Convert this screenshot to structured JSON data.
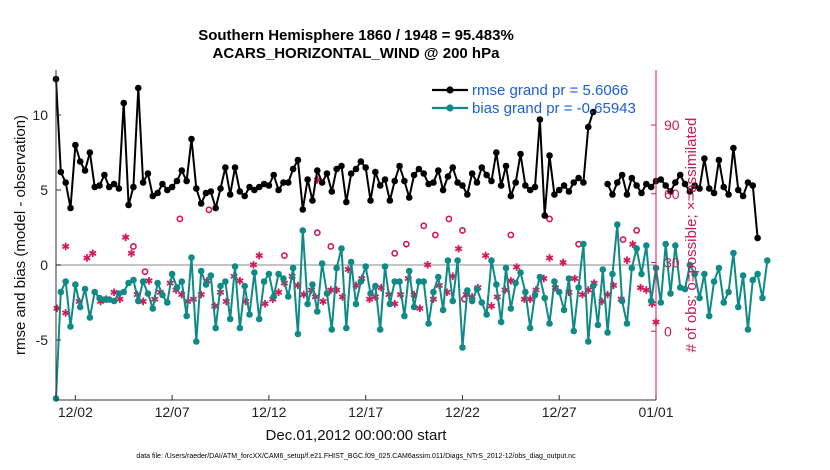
{
  "chart_data": {
    "type": "line",
    "title": "Southern Hemisphere 1860 / 1948 = 95.483%",
    "subtitle": "ACARS_HORIZONTAL_WIND @ 200 hPa",
    "xlabel": "Dec.01,2012 00:00:00 start",
    "ylabel": "rmse and bias (model - observation)",
    "ylabel_right": "# of obs: o=possible; ×=assimilated",
    "footnote": "data file: /Users/raeder/DAI/ATM_forcXX/CAM6_setup/f.e21.FHIST_BGC.f09_025.CAM6assim.011/Diags_NTrS_2012-12/obs_diag_output.nc",
    "x_range": [
      0,
      31
    ],
    "ylim": [
      -9,
      13
    ],
    "ylim_right": [
      -30,
      114
    ],
    "x_ticks": [
      1,
      6,
      11,
      16,
      21,
      26,
      31
    ],
    "x_tick_labels": [
      "12/02",
      "12/07",
      "12/12",
      "12/17",
      "12/22",
      "12/27",
      "01/01"
    ],
    "y_ticks": [
      -5,
      0,
      5,
      10
    ],
    "y_tick_labels": [
      "-5",
      "0",
      "5",
      "10"
    ],
    "y_ticks_right": [
      0,
      30,
      60,
      90
    ],
    "y_tick_labels_right": [
      "0",
      "30",
      "60",
      "90"
    ],
    "legend": [
      "rmse grand pr = 5.6066",
      "bias grand pr = -0.65943"
    ],
    "legend_position": "top-right",
    "colors": {
      "rmse": "#000000",
      "bias": "#0f8a86",
      "obs": "#d4195a",
      "zero_line": "#b0b0b0"
    },
    "series": [
      {
        "name": "rmse",
        "x_start": 0.0,
        "x_step": 0.25,
        "values": [
          12.4,
          6.2,
          5.5,
          3.8,
          8.0,
          6.9,
          6.3,
          7.5,
          5.2,
          5.3,
          6.0,
          5.2,
          5.4,
          5.1,
          10.8,
          4.0,
          5.2,
          11.8,
          5.5,
          6.1,
          4.6,
          4.8,
          5.4,
          5.0,
          5.2,
          5.6,
          6.3,
          5.6,
          8.4,
          5.1,
          4.1,
          4.8,
          4.9,
          3.8,
          5.1,
          6.5,
          4.7,
          6.5,
          4.9,
          4.6,
          5.2,
          5.0,
          5.2,
          5.4,
          5.3,
          6.0,
          5.0,
          5.5,
          5.5,
          6.4,
          7.0,
          3.7,
          5.7,
          4.3,
          6.3,
          5.5,
          6.1,
          4.9,
          6.4,
          6.6,
          4.2,
          6.1,
          6.4,
          6.9,
          6.5,
          4.3,
          6.2,
          5.3,
          5.7,
          4.3,
          5.6,
          6.6,
          5.6,
          4.5,
          6.0,
          6.4,
          6.1,
          5.4,
          5.5,
          6.3,
          5.0,
          5.9,
          6.5,
          5.5,
          5.3,
          4.7,
          6.1,
          5.5,
          6.5,
          6.0,
          5.6,
          7.5,
          5.3,
          6.6,
          4.6,
          5.5,
          7.4,
          5.3,
          5.0,
          5.2,
          9.7,
          3.3,
          7.3,
          4.7,
          5.0,
          5.3,
          4.9,
          5.5,
          5.8,
          5.5,
          9.2,
          10.2,
          null,
          null,
          5.4,
          4.7,
          5.5,
          6.0,
          4.7,
          5.8,
          5.3,
          4.8,
          5.4,
          5.2,
          5.6,
          5.7,
          5.3,
          4.9,
          5.5,
          6.0,
          5.4,
          4.9,
          5.3,
          5.1,
          7.1,
          5.1,
          4.8,
          7.0,
          5.2,
          4.7,
          7.8,
          5.0,
          4.6,
          5.5,
          5.3,
          1.8
        ],
        "line_breaks": [
          [
            0,
            15.3
          ],
          [
            15.3,
            27.9
          ],
          [
            27.9,
            31
          ]
        ]
      },
      {
        "name": "bias",
        "x_start": 0.0,
        "x_step": 0.25,
        "values": [
          -8.9,
          -1.8,
          -1.1,
          -4.1,
          -1.3,
          -2.8,
          -1.6,
          -3.5,
          -1.8,
          -2.2,
          -2.3,
          -2.3,
          -2.4,
          -1.9,
          -1.8,
          -1.2,
          -1.0,
          -2.4,
          -1.1,
          -1.9,
          -2.9,
          -1.2,
          -2.0,
          -2.5,
          -0.6,
          -1.5,
          -1.1,
          -3.4,
          0.5,
          -5.1,
          -0.4,
          -1.3,
          -0.7,
          -4.2,
          -1.4,
          -1.1,
          -3.6,
          -0.1,
          -4.2,
          -1.4,
          -3.3,
          -0.5,
          -3.6,
          -1.1,
          -0.6,
          -2.1,
          -0.6,
          -0.9,
          -2.1,
          -0.2,
          -4.6,
          2.3,
          -2.6,
          -1.3,
          -3.1,
          0.1,
          -1.9,
          -4.3,
          -0.2,
          1.1,
          -4.2,
          0.2,
          -2.6,
          -1.1,
          -0.1,
          -1.9,
          -1.4,
          -4.3,
          -0.1,
          -2.6,
          -1.1,
          -1.1,
          -3.4,
          -0.4,
          -2.8,
          -1.1,
          -1.1,
          -3.9,
          -1.8,
          -0.8,
          -3.0,
          0.3,
          -2.4,
          0.3,
          -5.5,
          -1.7,
          -2.4,
          -1.6,
          -2.5,
          -3.3,
          0.3,
          -1.3,
          -3.8,
          -0.2,
          -2.9,
          -1.2,
          -0.5,
          -1.8,
          -4.2,
          -2.0,
          -0.8,
          -2.2,
          -3.9,
          -1.1,
          -1.8,
          -3.0,
          -0.9,
          -4.4,
          -1.5,
          1.4,
          -5.1,
          -1.4,
          -4.0,
          -0.3,
          -4.5,
          -0.6,
          2.7,
          -2.4,
          -3.9,
          -0.2,
          1.1,
          -0.6,
          1.3,
          -2.4,
          -0.2,
          -2.5,
          1.4,
          -1.9,
          1.3,
          -1.5,
          -1.6,
          0.0,
          -0.6,
          -2.2,
          -0.6,
          -3.4,
          -1.1,
          -0.2,
          -2.5,
          -1.8,
          0.8,
          -2.8,
          -0.7,
          -4.3,
          -1.0,
          -0.6,
          -2.2,
          0.3
        ]
      },
      {
        "name": "obs_assimilated",
        "marker": "star",
        "points": [
          [
            0.05,
            10
          ],
          [
            0.5,
            8
          ],
          [
            0.5,
            37
          ],
          [
            1.2,
            13
          ],
          [
            1.6,
            32
          ],
          [
            1.9,
            34
          ],
          [
            2.3,
            13
          ],
          [
            2.6,
            14
          ],
          [
            3.0,
            17
          ],
          [
            3.3,
            14
          ],
          [
            3.6,
            41
          ],
          [
            3.9,
            34
          ],
          [
            4.2,
            16
          ],
          [
            4.5,
            13
          ],
          [
            4.8,
            22
          ],
          [
            5.1,
            14
          ],
          [
            5.4,
            17
          ],
          [
            5.9,
            21
          ],
          [
            6.2,
            18
          ],
          [
            6.5,
            16
          ],
          [
            6.8,
            13
          ],
          [
            7.1,
            14
          ],
          [
            7.5,
            16
          ],
          [
            7.8,
            22
          ],
          [
            8.2,
            11
          ],
          [
            8.5,
            17
          ],
          [
            8.8,
            13
          ],
          [
            9.2,
            24
          ],
          [
            9.5,
            22
          ],
          [
            9.8,
            13
          ],
          [
            10.2,
            29
          ],
          [
            10.5,
            33
          ],
          [
            10.8,
            12
          ],
          [
            11.2,
            14
          ],
          [
            11.5,
            17
          ],
          [
            11.8,
            21
          ],
          [
            12.2,
            24
          ],
          [
            12.5,
            20
          ],
          [
            12.8,
            16
          ],
          [
            13.2,
            18
          ],
          [
            13.4,
            15
          ],
          [
            13.5,
            66
          ],
          [
            13.8,
            13
          ],
          [
            14.2,
            18
          ],
          [
            14.5,
            18
          ],
          [
            14.8,
            15
          ],
          [
            15.1,
            27
          ],
          [
            15.5,
            20
          ],
          [
            15.8,
            23
          ],
          [
            16.2,
            14
          ],
          [
            16.5,
            15
          ],
          [
            16.8,
            19
          ],
          [
            17.2,
            16
          ],
          [
            17.5,
            12
          ],
          [
            17.8,
            16
          ],
          [
            18.2,
            23
          ],
          [
            18.5,
            16
          ],
          [
            18.8,
            10
          ],
          [
            19.2,
            29
          ],
          [
            19.5,
            14
          ],
          [
            19.8,
            20
          ],
          [
            20.2,
            17
          ],
          [
            20.5,
            24
          ],
          [
            20.8,
            36
          ],
          [
            21.2,
            16
          ],
          [
            21.5,
            15
          ],
          [
            21.8,
            19
          ],
          [
            22.2,
            33
          ],
          [
            22.5,
            11
          ],
          [
            22.8,
            15
          ],
          [
            23.2,
            18
          ],
          [
            23.5,
            22
          ],
          [
            23.8,
            28
          ],
          [
            24.2,
            14
          ],
          [
            24.5,
            14
          ],
          [
            24.8,
            18
          ],
          [
            25.2,
            23
          ],
          [
            25.5,
            32
          ],
          [
            25.8,
            19
          ],
          [
            26.2,
            30
          ],
          [
            26.5,
            17
          ],
          [
            26.8,
            23
          ],
          [
            27.2,
            16
          ],
          [
            27.5,
            18
          ],
          [
            27.8,
            21
          ],
          [
            28.2,
            13
          ],
          [
            28.5,
            16
          ],
          [
            28.8,
            20
          ],
          [
            29.2,
            14
          ],
          [
            29.5,
            31
          ],
          [
            29.8,
            38
          ],
          [
            30.2,
            19
          ],
          [
            30.5,
            18
          ],
          [
            30.8,
            12
          ],
          [
            31.0,
            4
          ]
        ]
      },
      {
        "name": "obs_possible",
        "marker": "circle",
        "points": [
          [
            4.0,
            37
          ],
          [
            4.6,
            26
          ],
          [
            6.4,
            49
          ],
          [
            7.9,
            53
          ],
          [
            11.8,
            33
          ],
          [
            13.5,
            43
          ],
          [
            14.2,
            37
          ],
          [
            17.5,
            34
          ],
          [
            18.1,
            38
          ],
          [
            19.0,
            46
          ],
          [
            19.6,
            42
          ],
          [
            20.3,
            49
          ],
          [
            21.0,
            44
          ],
          [
            21.1,
            14
          ],
          [
            23.5,
            42
          ],
          [
            25.5,
            49
          ],
          [
            27.0,
            38
          ],
          [
            29.3,
            40
          ],
          [
            30.0,
            44
          ]
        ]
      }
    ]
  }
}
